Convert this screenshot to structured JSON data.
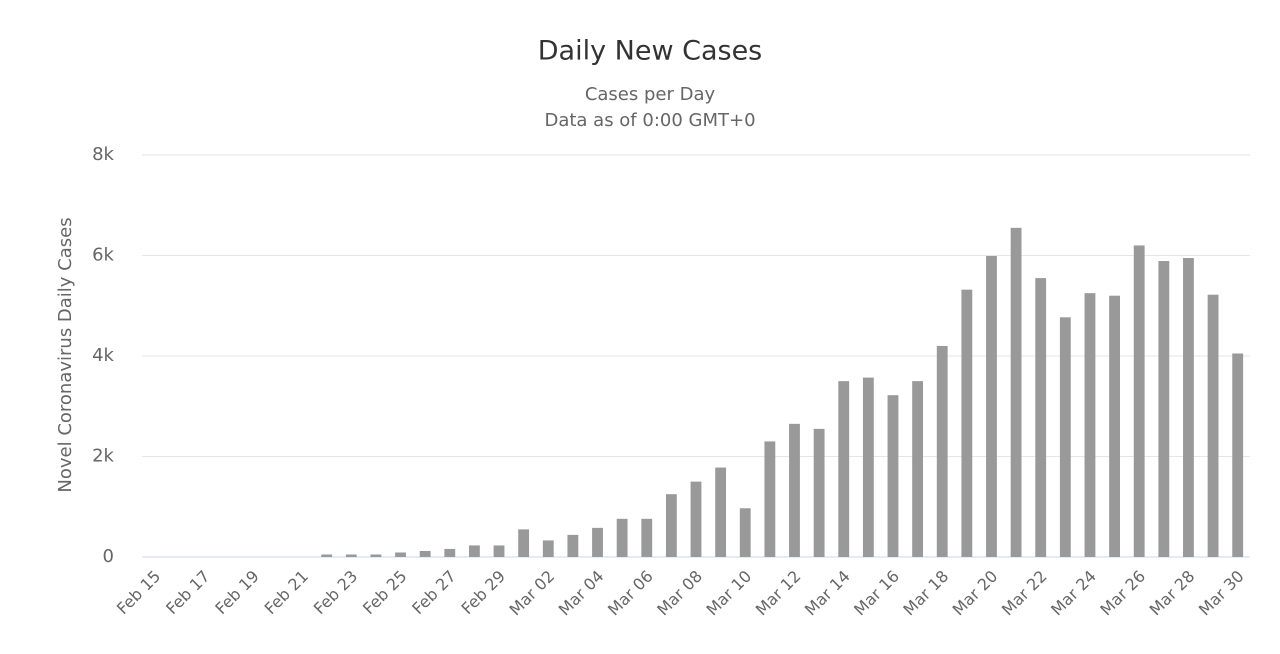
{
  "chart_data": {
    "type": "bar",
    "title": "Daily New Cases",
    "subtitle": [
      "Cases per Day",
      "Data as of 0:00 GMT+0"
    ],
    "y_label": "Novel Coronavirus Daily Cases",
    "categories": [
      "Feb 15",
      null,
      "Feb 17",
      null,
      "Feb 19",
      null,
      "Feb 21",
      null,
      "Feb 23",
      null,
      "Feb 25",
      null,
      "Feb 27",
      null,
      "Feb 29",
      null,
      "Mar 02",
      null,
      "Mar 04",
      null,
      "Mar 06",
      null,
      "Mar 08",
      null,
      "Mar 10",
      null,
      "Mar 12",
      null,
      "Mar 14",
      null,
      "Mar 16",
      null,
      "Mar 18",
      null,
      "Mar 20",
      null,
      "Mar 22",
      null,
      "Mar 24",
      null,
      "Mar 26",
      null,
      "Mar 28",
      null,
      "Mar 30"
    ],
    "values": [
      0,
      0,
      0,
      0,
      0,
      0,
      0,
      50,
      50,
      50,
      90,
      120,
      160,
      230,
      230,
      550,
      330,
      440,
      580,
      760,
      760,
      1250,
      1500,
      1780,
      970,
      2300,
      2650,
      2550,
      3500,
      3570,
      3220,
      3500,
      4200,
      5320,
      5990,
      6550,
      5550,
      4770,
      5250,
      5200,
      6200,
      5890,
      5950,
      5220,
      4050
    ],
    "color": "#999999",
    "ylim": [
      0,
      8000
    ],
    "yticks": [
      0,
      {
        "value": 2000,
        "label": "2k"
      },
      {
        "value": 4000,
        "label": "4k"
      },
      {
        "value": 6000,
        "label": "6k"
      },
      {
        "value": 8000,
        "label": "8k"
      }
    ],
    "grid": true
  }
}
